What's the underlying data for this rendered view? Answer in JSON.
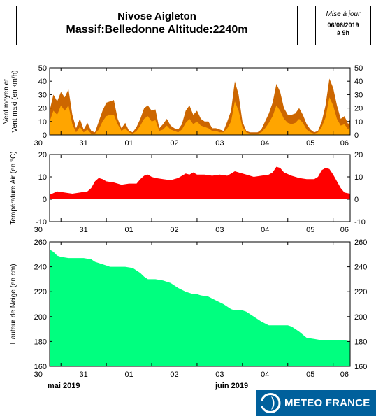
{
  "header": {
    "title_line1": "Nivose Aigleton",
    "title_line2": "Massif:Belledonne Altitude:2240m",
    "date_caption": "Mise à jour",
    "date_value": "06/06/2019",
    "time_value": "à 9h"
  },
  "days": [
    "30",
    "31",
    "01",
    "02",
    "03",
    "04",
    "05",
    "06"
  ],
  "months": [
    "mai 2019",
    "juin 2019"
  ],
  "logo": {
    "text": "METEO FRANCE"
  },
  "colors": {
    "wind_max": "#cc6600",
    "wind_mean": "#ffa500",
    "temperature": "#ff0000",
    "snow": "#00ff7f",
    "logo_bg": "#00609c"
  },
  "chart_data": [
    {
      "type": "area",
      "ylabel": "Vent moyen et Vent maxi (en km/h)",
      "ylim": [
        0,
        50
      ],
      "yticks": [
        0,
        10,
        20,
        30,
        40,
        50
      ],
      "x_unit": "hours since 2019-05-29 18h",
      "x_range": [
        0,
        159
      ],
      "series": [
        {
          "name": "Vent maxi",
          "x": [
            0,
            2,
            4,
            6,
            8,
            10,
            12,
            14,
            16,
            18,
            20,
            22,
            24,
            26,
            28,
            30,
            32,
            34,
            36,
            38,
            40,
            42,
            44,
            46,
            48,
            50,
            52,
            54,
            56,
            58,
            60,
            62,
            64,
            66,
            68,
            70,
            72,
            74,
            76,
            78,
            80,
            82,
            84,
            86,
            88,
            90,
            92,
            94,
            96,
            98,
            100,
            102,
            104,
            106,
            108,
            110,
            112,
            114,
            116,
            118,
            120,
            122,
            124,
            126,
            128,
            130,
            132,
            134,
            136,
            138,
            140,
            142,
            144,
            146,
            148,
            150,
            152,
            154,
            156,
            158,
            159
          ],
          "values": [
            18,
            30,
            25,
            32,
            28,
            34,
            15,
            5,
            12,
            4,
            9,
            3,
            2,
            10,
            18,
            24,
            25,
            26,
            12,
            5,
            9,
            3,
            2,
            6,
            12,
            20,
            22,
            18,
            19,
            5,
            8,
            12,
            7,
            5,
            4,
            8,
            18,
            22,
            15,
            18,
            12,
            10,
            10,
            5,
            5,
            4,
            3,
            10,
            18,
            40,
            30,
            10,
            3,
            2,
            2,
            2,
            4,
            10,
            16,
            24,
            38,
            32,
            20,
            15,
            15,
            16,
            20,
            15,
            8,
            4,
            2,
            3,
            10,
            22,
            42,
            35,
            22,
            12,
            14,
            8,
            12
          ]
        },
        {
          "name": "Vent moyen",
          "x": [
            0,
            2,
            4,
            6,
            8,
            10,
            12,
            14,
            16,
            18,
            20,
            22,
            24,
            26,
            28,
            30,
            32,
            34,
            36,
            38,
            40,
            42,
            44,
            46,
            48,
            50,
            52,
            54,
            56,
            58,
            60,
            62,
            64,
            66,
            68,
            70,
            72,
            74,
            76,
            78,
            80,
            82,
            84,
            86,
            88,
            90,
            92,
            94,
            96,
            98,
            100,
            102,
            104,
            106,
            108,
            110,
            112,
            114,
            116,
            118,
            120,
            122,
            124,
            126,
            128,
            130,
            132,
            134,
            136,
            138,
            140,
            142,
            144,
            146,
            148,
            150,
            152,
            154,
            156,
            158,
            159
          ],
          "values": [
            10,
            18,
            15,
            22,
            18,
            22,
            8,
            2,
            6,
            2,
            4,
            1,
            1,
            4,
            10,
            14,
            15,
            15,
            8,
            3,
            5,
            2,
            1,
            3,
            7,
            12,
            14,
            10,
            11,
            3,
            4,
            7,
            4,
            3,
            2,
            4,
            9,
            12,
            8,
            10,
            7,
            6,
            5,
            3,
            3,
            2,
            2,
            5,
            10,
            25,
            18,
            6,
            2,
            1,
            1,
            1,
            2,
            5,
            9,
            14,
            22,
            18,
            12,
            9,
            8,
            9,
            12,
            9,
            4,
            2,
            1,
            2,
            6,
            13,
            28,
            22,
            12,
            7,
            8,
            4,
            6
          ]
        }
      ]
    },
    {
      "type": "area",
      "ylabel": "Température Air (en °C)",
      "ylim": [
        -10,
        20
      ],
      "yticks": [
        -10,
        0,
        10,
        20
      ],
      "x_unit": "hours since 2019-05-29 18h",
      "x_range": [
        0,
        159
      ],
      "series": [
        {
          "name": "Température Air",
          "x": [
            0,
            4,
            8,
            12,
            16,
            20,
            22,
            24,
            26,
            28,
            30,
            34,
            38,
            42,
            46,
            48,
            50,
            52,
            54,
            56,
            60,
            64,
            68,
            72,
            74,
            76,
            78,
            82,
            86,
            90,
            94,
            96,
            98,
            100,
            104,
            108,
            112,
            116,
            118,
            120,
            122,
            124,
            128,
            132,
            136,
            140,
            142,
            144,
            146,
            148,
            150,
            152,
            154,
            156,
            159
          ],
          "values": [
            2,
            3.5,
            3,
            2.5,
            3,
            3.5,
            5,
            8,
            9.5,
            9,
            8,
            7.5,
            6.5,
            7,
            7,
            9,
            10.5,
            11,
            10,
            9.5,
            9,
            8.5,
            9.5,
            11.5,
            11,
            12,
            11,
            11,
            10.5,
            11,
            10.5,
            11.5,
            12.5,
            12,
            11,
            10,
            10.5,
            11,
            12,
            14.5,
            14,
            12,
            10.5,
            9.5,
            9,
            9,
            10,
            13,
            14,
            13.5,
            11,
            8,
            5,
            3,
            2.5
          ]
        }
      ]
    },
    {
      "type": "area",
      "ylabel": "Hauteur de Neige (en cm)",
      "ylim": [
        160,
        260
      ],
      "yticks": [
        160,
        180,
        200,
        220,
        240,
        260
      ],
      "x_unit": "hours since 2019-05-29 18h",
      "x_range": [
        0,
        159
      ],
      "series": [
        {
          "name": "Hauteur de Neige",
          "x": [
            0,
            2,
            4,
            6,
            10,
            14,
            18,
            22,
            24,
            26,
            28,
            30,
            32,
            36,
            40,
            44,
            48,
            50,
            52,
            54,
            56,
            60,
            64,
            68,
            72,
            74,
            76,
            78,
            80,
            84,
            88,
            92,
            96,
            98,
            100,
            102,
            104,
            108,
            112,
            116,
            120,
            122,
            124,
            126,
            128,
            132,
            136,
            140,
            144,
            146,
            148,
            150,
            152,
            156,
            159
          ],
          "values": [
            254,
            252,
            249,
            248,
            247,
            247,
            247,
            246,
            244,
            243,
            242,
            241,
            240,
            240,
            240,
            239,
            235,
            232,
            230,
            230,
            230,
            229,
            227,
            223,
            220,
            219,
            218,
            218,
            217,
            216,
            213,
            210,
            206,
            205,
            205,
            205,
            204,
            200,
            196,
            193,
            193,
            193,
            193,
            193,
            192,
            188,
            183,
            182,
            181,
            181,
            181,
            181,
            181,
            181,
            180
          ]
        }
      ]
    }
  ]
}
